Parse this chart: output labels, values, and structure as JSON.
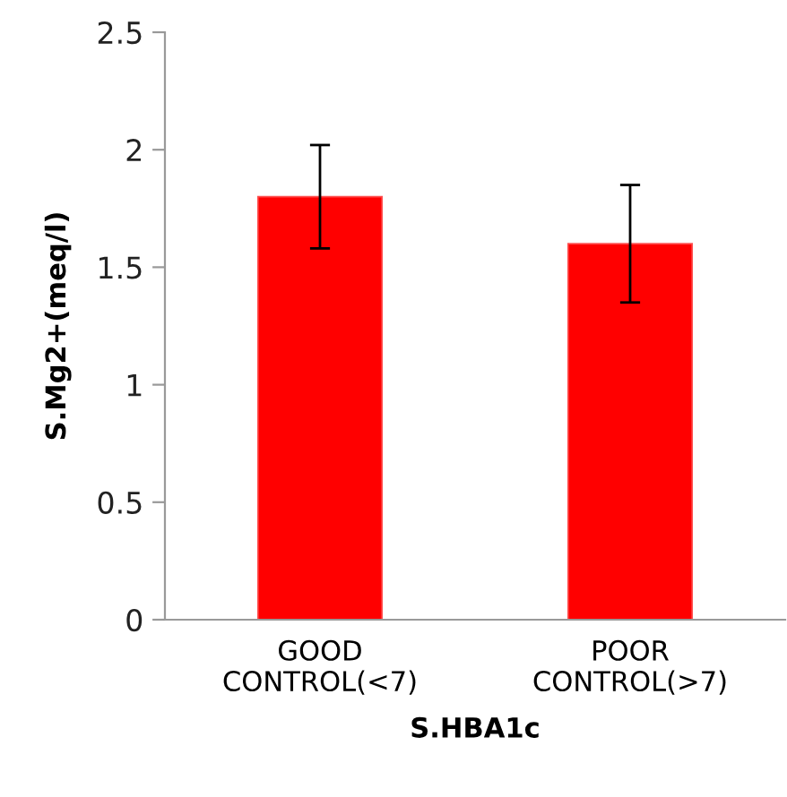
{
  "chart_data": {
    "type": "bar",
    "xlabel": "S.HBA1c",
    "ylabel": "S.Mg2+(meq/l)",
    "categories": [
      "GOOD\nCONTROL(<7)",
      "POOR\nCONTROL(>7)"
    ],
    "values": [
      1.8,
      1.6
    ],
    "errors": [
      0.22,
      0.25
    ],
    "color": "#ff0000",
    "ylim": [
      0,
      2.5
    ],
    "yticks": [
      0,
      0.5,
      1,
      1.5,
      2,
      2.5
    ],
    "grid": false,
    "legend": false
  }
}
